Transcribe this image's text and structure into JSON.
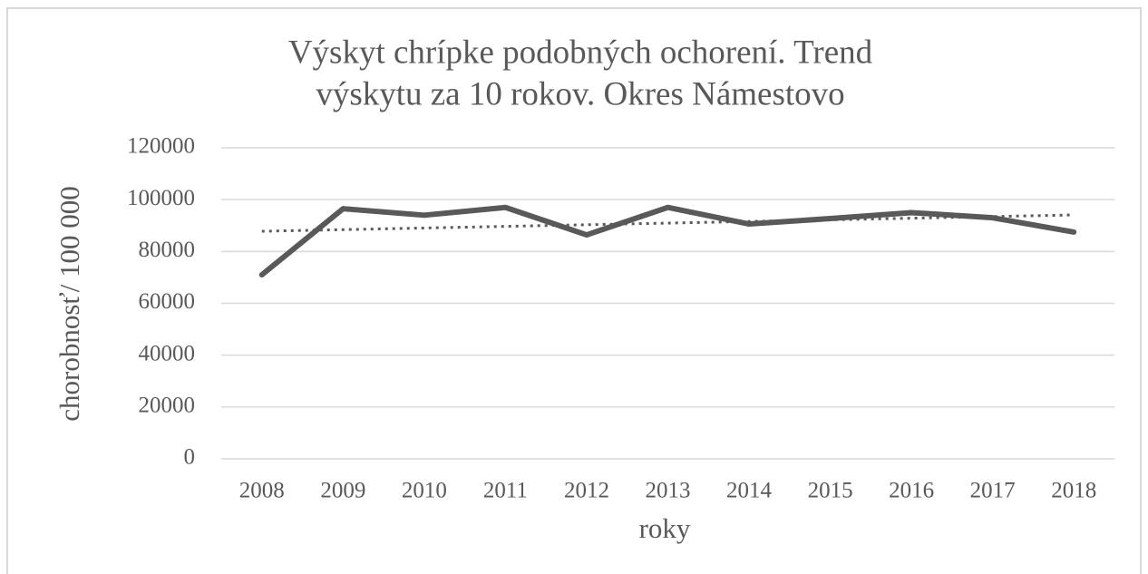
{
  "chart_data": {
    "type": "line",
    "title": [
      "Výskyt chrípke podobných ochorení. Trend",
      "výskytu za 10 rokov. Okres Námestovo"
    ],
    "x_label": "roky",
    "y_label": "chorobnosť/ 100 000",
    "categories": [
      "2008",
      "2009",
      "2010",
      "2011",
      "2012",
      "2013",
      "2014",
      "2015",
      "2016",
      "2017",
      "2018"
    ],
    "series": [
      {
        "color": "#595959",
        "line_style": "solid",
        "values": [
          71000,
          96500,
          94000,
          97000,
          86400,
          97000,
          90600,
          92700,
          95000,
          93000,
          87500
        ]
      },
      {
        "color": "#595959",
        "line_style": "dotted",
        "values": [
          87800,
          88430,
          89060,
          89690,
          90320,
          90950,
          91580,
          92210,
          92840,
          93470,
          94100
        ]
      }
    ],
    "ylim": [
      0,
      120000
    ],
    "yticks": [
      0,
      20000,
      40000,
      60000,
      80000,
      100000,
      120000
    ],
    "grid": true
  }
}
